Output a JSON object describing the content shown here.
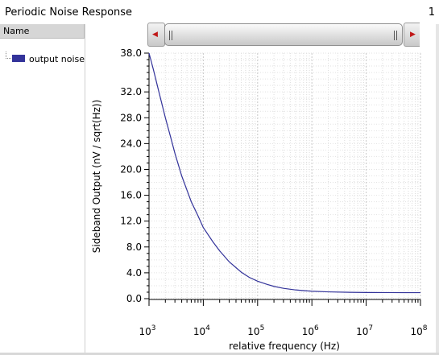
{
  "window": {
    "title": "Periodic Noise Response",
    "index": "1"
  },
  "legend": {
    "header": "Name",
    "items": [
      {
        "label": "output noise",
        "color": "#33339a"
      }
    ]
  },
  "chart_data": {
    "type": "line",
    "xlabel": "relative frequency (Hz)",
    "ylabel": "Sideband Output (nV / sqrt(Hz))",
    "xscale": "log",
    "xlim": [
      1000,
      100000000
    ],
    "ylim": [
      0,
      38
    ],
    "grid": true,
    "x_ticks": [
      {
        "base": "10",
        "exp": "3"
      },
      {
        "base": "10",
        "exp": "4"
      },
      {
        "base": "10",
        "exp": "5"
      },
      {
        "base": "10",
        "exp": "6"
      },
      {
        "base": "10",
        "exp": "7"
      },
      {
        "base": "10",
        "exp": "8"
      }
    ],
    "y_ticks": [
      "0.0",
      "4.0",
      "8.0",
      "12.0",
      "16.0",
      "20.0",
      "24.0",
      "28.0",
      "32.0",
      "38.0"
    ],
    "y_tick_values": [
      0,
      4,
      8,
      12,
      16,
      20,
      24,
      28,
      32,
      38
    ],
    "series": [
      {
        "name": "output noise",
        "color": "#33339a",
        "x": [
          1000,
          1200,
          1500,
          2000,
          2500,
          3000,
          4000,
          5000,
          6000,
          8000,
          10000,
          15000,
          20000,
          30000,
          50000,
          70000,
          100000,
          150000,
          200000,
          300000,
          500000,
          700000,
          1000000,
          2000000,
          5000000,
          10000000,
          20000000,
          50000000,
          100000000
        ],
        "y": [
          38.0,
          35.5,
          32.2,
          28.0,
          25.0,
          22.5,
          19.0,
          16.8,
          15.0,
          12.8,
          11.0,
          8.8,
          7.4,
          5.7,
          4.1,
          3.3,
          2.7,
          2.2,
          1.9,
          1.6,
          1.35,
          1.25,
          1.15,
          1.05,
          0.98,
          0.95,
          0.94,
          0.93,
          0.93
        ]
      }
    ]
  }
}
